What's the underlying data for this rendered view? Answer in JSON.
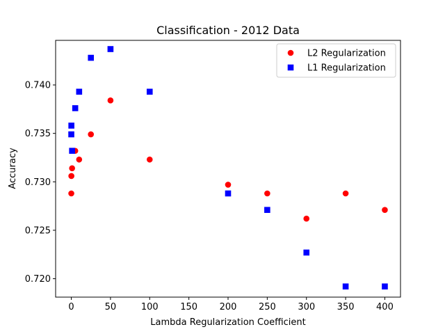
{
  "chart_data": {
    "type": "scatter",
    "title": "Classification - 2012 Data",
    "xlabel": "Lambda Regularization Coefficient",
    "ylabel": "Accuracy",
    "xlim": [
      -20,
      420
    ],
    "ylim": [
      0.7181,
      0.7446
    ],
    "xticks": [
      0,
      50,
      100,
      150,
      200,
      250,
      300,
      350,
      400
    ],
    "xtick_labels": [
      "0",
      "50",
      "100",
      "150",
      "200",
      "250",
      "300",
      "350",
      "400"
    ],
    "yticks": [
      0.72,
      0.725,
      0.73,
      0.735,
      0.74
    ],
    "ytick_labels": [
      "0.720",
      "0.725",
      "0.730",
      "0.735",
      "0.740"
    ],
    "grid": false,
    "legend_position": "top-right",
    "series": [
      {
        "name": "L2 Regularization",
        "marker": "circle",
        "color": "#ff0000",
        "x": [
          0,
          0.1,
          1,
          5,
          10,
          25,
          50,
          100,
          200,
          250,
          300,
          350,
          400
        ],
        "y": [
          0.7288,
          0.7306,
          0.7314,
          0.7332,
          0.7323,
          0.7349,
          0.7384,
          0.7323,
          0.7297,
          0.7288,
          0.7262,
          0.7288,
          0.7271
        ]
      },
      {
        "name": "L1 Regularization",
        "marker": "square",
        "color": "#0000ff",
        "x": [
          0,
          0.1,
          1,
          5,
          10,
          25,
          50,
          100,
          200,
          250,
          300,
          350,
          400
        ],
        "y": [
          0.7349,
          0.7358,
          0.7332,
          0.7376,
          0.7393,
          0.7428,
          0.7437,
          0.7393,
          0.7288,
          0.7271,
          0.7227,
          0.7192,
          0.7192
        ]
      }
    ]
  }
}
